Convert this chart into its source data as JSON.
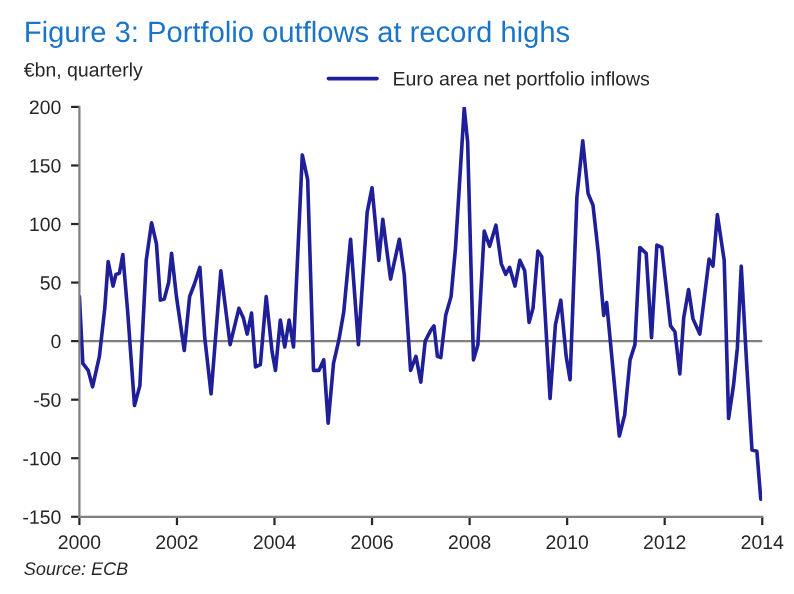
{
  "chart_data": {
    "type": "line",
    "title": "Figure 3: Portfolio outflows at record highs",
    "ylabel": "€bn, quarterly",
    "annotations": [
      "Source: ECB"
    ],
    "xlim": [
      2000,
      2014
    ],
    "xticks": [
      2000,
      2002,
      2004,
      2006,
      2008,
      2010,
      2012,
      2014
    ],
    "ylim": [
      -150,
      200
    ],
    "yticks": [
      -150,
      -100,
      -50,
      0,
      50,
      100,
      150,
      200
    ],
    "ref_lines": [
      {
        "axis": "y",
        "value": 0,
        "color": "#808080"
      }
    ],
    "legend": "top",
    "grid": false,
    "series": [
      {
        "name": "Euro area net portfolio inflows",
        "color": "#1f1f99",
        "x": [
          2000.0,
          2000.07,
          2000.18,
          2000.27,
          2000.41,
          2000.52,
          2000.59,
          2000.69,
          2000.75,
          2000.82,
          2000.89,
          2000.99,
          2001.13,
          2001.24,
          2001.37,
          2001.48,
          2001.58,
          2001.66,
          2001.74,
          2001.83,
          2001.89,
          2001.99,
          2002.15,
          2002.26,
          2002.36,
          2002.47,
          2002.57,
          2002.7,
          2002.9,
          2003.09,
          2003.27,
          2003.36,
          2003.44,
          2003.53,
          2003.61,
          2003.71,
          2003.83,
          2003.95,
          2004.02,
          2004.12,
          2004.21,
          2004.3,
          2004.39,
          2004.57,
          2004.68,
          2004.8,
          2004.91,
          2005.01,
          2005.1,
          2005.21,
          2005.32,
          2005.42,
          2005.56,
          2005.72,
          2005.9,
          2006.0,
          2006.14,
          2006.22,
          2006.38,
          2006.56,
          2006.66,
          2006.79,
          2006.9,
          2007.0,
          2007.09,
          2007.2,
          2007.27,
          2007.34,
          2007.41,
          2007.51,
          2007.62,
          2007.71,
          2007.89,
          2007.96,
          2008.08,
          2008.17,
          2008.3,
          2008.41,
          2008.54,
          2008.65,
          2008.74,
          2008.82,
          2008.93,
          2009.03,
          2009.13,
          2009.22,
          2009.3,
          2009.4,
          2009.48,
          2009.65,
          2009.76,
          2009.87,
          2009.98,
          2010.06,
          2010.2,
          2010.32,
          2010.43,
          2010.53,
          2010.64,
          2010.75,
          2010.81,
          2011.07,
          2011.18,
          2011.29,
          2011.39,
          2011.49,
          2011.62,
          2011.73,
          2011.84,
          2011.94,
          2012.12,
          2012.21,
          2012.31,
          2012.39,
          2012.49,
          2012.58,
          2012.72,
          2012.91,
          2012.99,
          2013.08,
          2013.22,
          2013.31,
          2013.41,
          2013.49,
          2013.57,
          2013.68,
          2013.79,
          2013.89,
          2013.97
        ],
        "values": [
          38,
          -19,
          -25,
          -39,
          -13,
          28,
          68,
          47,
          57,
          58,
          74,
          25,
          -55,
          -38,
          69,
          101,
          83,
          35,
          36,
          50,
          75,
          38,
          -8,
          38,
          49,
          63,
          3,
          -45,
          60,
          -3,
          28,
          20,
          6,
          24,
          -22,
          -20,
          38,
          -9,
          -25,
          18,
          -5,
          18,
          -5,
          159,
          138,
          -25,
          -25,
          -16,
          -70,
          -19,
          1,
          25,
          87,
          -3,
          110,
          131,
          69,
          104,
          53,
          87,
          57,
          -25,
          -13,
          -35,
          0,
          9,
          13,
          -13,
          -14,
          22,
          38,
          79,
          199,
          170,
          -16,
          -3,
          94,
          81,
          99,
          66,
          57,
          63,
          47,
          69,
          60,
          16,
          28,
          77,
          72,
          -49,
          14,
          35,
          -13,
          -33,
          123,
          171,
          126,
          116,
          75,
          22,
          33,
          -81,
          -63,
          -16,
          -3,
          80,
          75,
          3,
          82,
          80,
          13,
          8,
          -28,
          20,
          44,
          19,
          6,
          70,
          64,
          108,
          69,
          -66,
          -38,
          -6,
          64,
          -19,
          -93,
          -94,
          -135
        ]
      }
    ]
  }
}
